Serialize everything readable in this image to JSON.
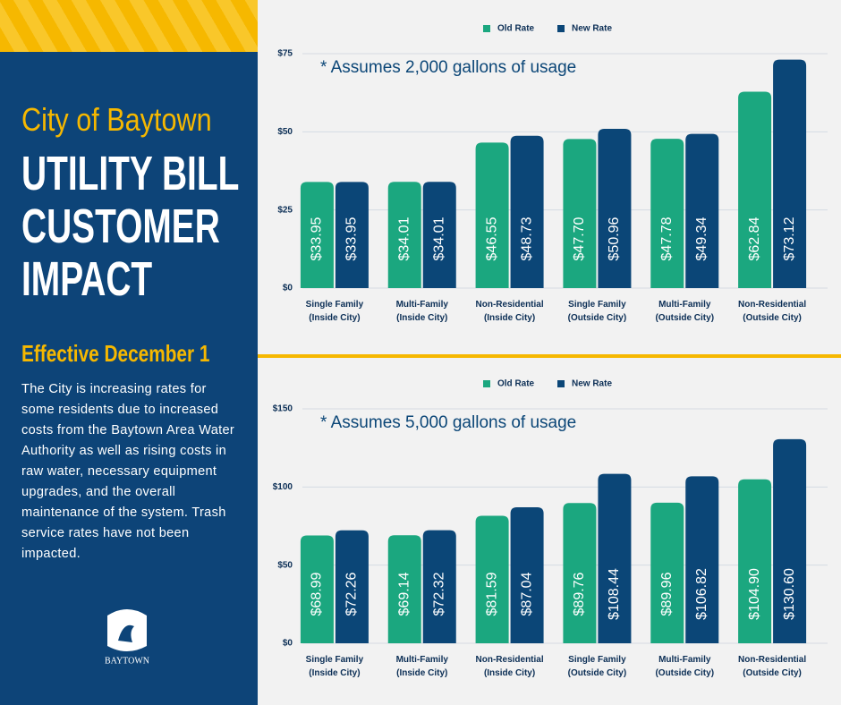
{
  "panel": {
    "city": "City of Baytown",
    "title_lines": [
      "UTILITY BILL",
      "CUSTOMER",
      "IMPACT"
    ],
    "effective": "Effective December 1",
    "body": "The City is increasing rates for some residents due to increased costs from the Baytown Area Water Authority as well as rising costs in raw water, necessary equipment upgrades, and the overall maintenance of the system. Trash service rates have not been impacted.",
    "logo_text": "BAYTOWN"
  },
  "chart_data": [
    {
      "type": "bar",
      "annotation": "* Assumes 2,000 gallons of usage",
      "legend": "top",
      "grid": true,
      "categories": [
        "Single Family\n(Inside City)",
        "Multi-Family\n(Inside City)",
        "Non-Residential\n(Inside City)",
        "Single Family\n(Outside City)",
        "Multi-Family\n(Outside City)",
        "Non-Residential\n(Outside City)"
      ],
      "series": [
        {
          "name": "Old Rate",
          "color": "#1ba77f",
          "values": [
            33.95,
            34.01,
            46.55,
            47.7,
            47.78,
            62.84
          ],
          "value_labels": [
            "$33.95",
            "$34.01",
            "$46.55",
            "$47.70",
            "$47.78",
            "$62.84"
          ]
        },
        {
          "name": "New Rate",
          "color": "#0b4677",
          "values": [
            33.95,
            34.01,
            48.73,
            50.96,
            49.34,
            73.12
          ],
          "value_labels": [
            "$33.95",
            "$34.01",
            "$48.73",
            "$50.96",
            "$49.34",
            "$73.12"
          ]
        }
      ],
      "ylim": [
        0,
        75
      ],
      "yticks": [
        {
          "value": 0,
          "label": "$0"
        },
        {
          "value": 25,
          "label": "$25"
        },
        {
          "value": 50,
          "label": "$50"
        },
        {
          "value": 75,
          "label": "$75"
        }
      ]
    },
    {
      "type": "bar",
      "annotation": "* Assumes 5,000 gallons of usage",
      "legend": "top",
      "grid": true,
      "categories": [
        "Single Family\n(Inside City)",
        "Multi-Family\n(Inside City)",
        "Non-Residential\n(Inside City)",
        "Single Family\n(Outside City)",
        "Multi-Family\n(Outside City)",
        "Non-Residential\n(Outside City)"
      ],
      "series": [
        {
          "name": "Old Rate",
          "color": "#1ba77f",
          "values": [
            68.99,
            69.14,
            81.59,
            89.76,
            89.96,
            104.9
          ],
          "value_labels": [
            "$68.99",
            "$69.14",
            "$81.59",
            "$89.76",
            "$89.96",
            "$104.90"
          ]
        },
        {
          "name": "New Rate",
          "color": "#0b4677",
          "values": [
            72.26,
            72.32,
            87.04,
            108.44,
            106.82,
            130.6
          ],
          "value_labels": [
            "$72.26",
            "$72.32",
            "$87.04",
            "$108.44",
            "$106.82",
            "$130.60"
          ]
        }
      ],
      "ylim": [
        0,
        150
      ],
      "yticks": [
        {
          "value": 0,
          "label": "$0"
        },
        {
          "value": 50,
          "label": "$50"
        },
        {
          "value": 100,
          "label": "$100"
        },
        {
          "value": 150,
          "label": "$150"
        }
      ]
    }
  ]
}
